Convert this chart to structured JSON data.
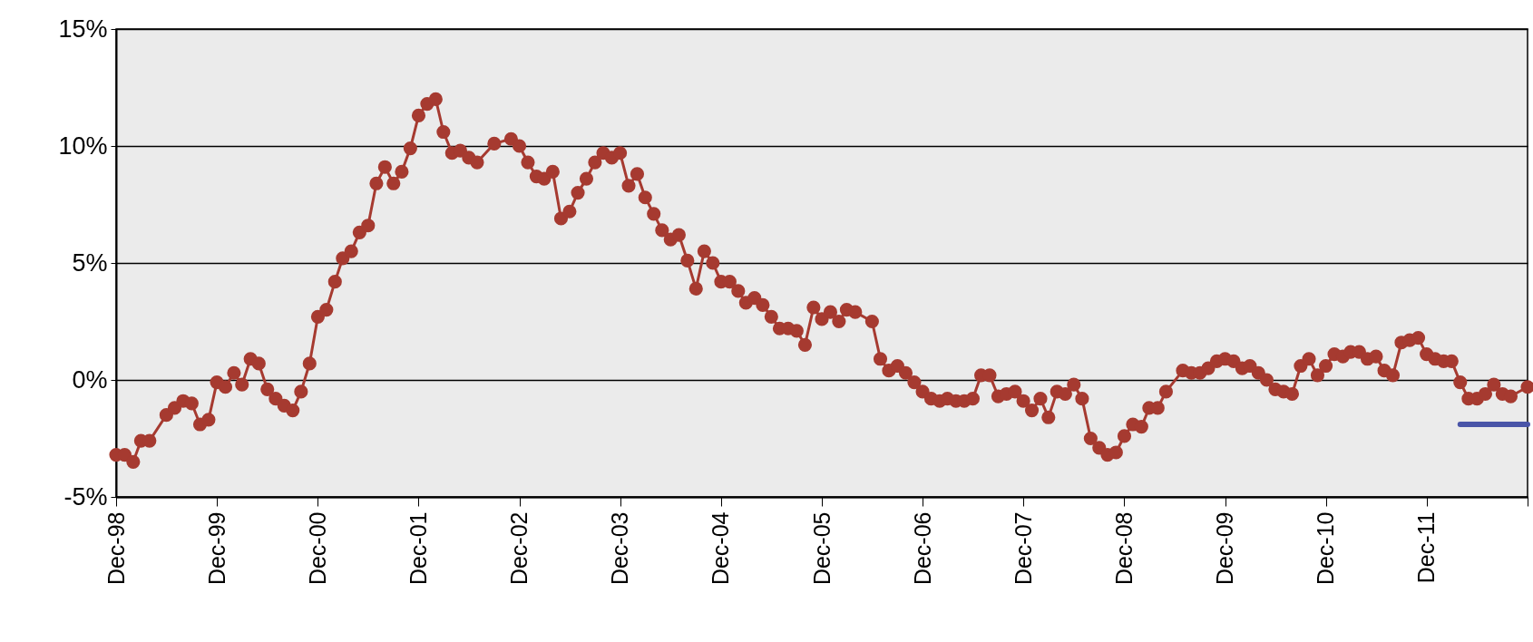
{
  "chart_data": {
    "type": "line",
    "xlim": [
      "1998-12",
      "2012-12"
    ],
    "ylim": [
      -5,
      15
    ],
    "xticks": [
      {
        "value": "1998-12",
        "label": "Dec-98"
      },
      {
        "value": "1999-12",
        "label": "Dec-99"
      },
      {
        "value": "2000-12",
        "label": "Dec-00"
      },
      {
        "value": "2001-12",
        "label": "Dec-01"
      },
      {
        "value": "2002-12",
        "label": "Dec-02"
      },
      {
        "value": "2003-12",
        "label": "Dec-03"
      },
      {
        "value": "2004-12",
        "label": "Dec-04"
      },
      {
        "value": "2005-12",
        "label": "Dec-05"
      },
      {
        "value": "2006-12",
        "label": "Dec-06"
      },
      {
        "value": "2007-12",
        "label": "Dec-07"
      },
      {
        "value": "2008-12",
        "label": "Dec-08"
      },
      {
        "value": "2009-12",
        "label": "Dec-09"
      },
      {
        "value": "2010-12",
        "label": "Dec-10"
      },
      {
        "value": "2011-12",
        "label": "Dec-11"
      },
      {
        "value": "2012-12",
        "label": null
      }
    ],
    "yticks": [
      {
        "value": -5,
        "label": "-5%"
      },
      {
        "value": 0,
        "label": "0%"
      },
      {
        "value": 5,
        "label": "5%"
      },
      {
        "value": 10,
        "label": "10%"
      },
      {
        "value": 15,
        "label": "15%"
      }
    ],
    "grid": "y",
    "marker": "circle",
    "line_style": "solid",
    "series": [
      {
        "color": "#a63a30",
        "x": [
          "1998-12",
          "1999-01",
          "1999-02",
          "1999-03",
          "1999-04",
          "1999-06",
          "1999-07",
          "1999-08",
          "1999-09",
          "1999-10",
          "1999-11",
          "1999-12",
          "2000-01",
          "2000-02",
          "2000-03",
          "2000-04",
          "2000-05",
          "2000-06",
          "2000-07",
          "2000-08",
          "2000-09",
          "2000-10",
          "2000-11",
          "2000-12",
          "2001-01",
          "2001-02",
          "2001-03",
          "2001-04",
          "2001-05",
          "2001-06",
          "2001-07",
          "2001-08",
          "2001-09",
          "2001-10",
          "2001-11",
          "2001-12",
          "2002-01",
          "2002-02",
          "2002-03",
          "2002-04",
          "2002-05",
          "2002-06",
          "2002-07",
          "2002-09",
          "2002-11",
          "2002-12",
          "2003-01",
          "2003-02",
          "2003-03",
          "2003-04",
          "2003-05",
          "2003-06",
          "2003-07",
          "2003-08",
          "2003-09",
          "2003-10",
          "2003-11",
          "2003-12",
          "2004-01",
          "2004-02",
          "2004-03",
          "2004-04",
          "2004-05",
          "2004-06",
          "2004-07",
          "2004-08",
          "2004-09",
          "2004-10",
          "2004-11",
          "2004-12",
          "2005-01",
          "2005-02",
          "2005-03",
          "2005-04",
          "2005-05",
          "2005-06",
          "2005-07",
          "2005-08",
          "2005-09",
          "2005-10",
          "2005-11",
          "2005-12",
          "2006-01",
          "2006-02",
          "2006-03",
          "2006-04",
          "2006-06",
          "2006-07",
          "2006-08",
          "2006-09",
          "2006-10",
          "2006-11",
          "2006-12",
          "2007-01",
          "2007-02",
          "2007-03",
          "2007-04",
          "2007-05",
          "2007-06",
          "2007-07",
          "2007-08",
          "2007-09",
          "2007-10",
          "2007-11",
          "2007-12",
          "2008-01",
          "2008-02",
          "2008-03",
          "2008-04",
          "2008-05",
          "2008-06",
          "2008-07",
          "2008-08",
          "2008-09",
          "2008-10",
          "2008-11",
          "2008-12",
          "2009-01",
          "2009-02",
          "2009-03",
          "2009-04",
          "2009-05",
          "2009-07",
          "2009-08",
          "2009-09",
          "2009-10",
          "2009-11",
          "2009-12",
          "2010-01",
          "2010-02",
          "2010-03",
          "2010-04",
          "2010-05",
          "2010-06",
          "2010-07",
          "2010-08",
          "2010-09",
          "2010-10",
          "2010-11",
          "2010-12",
          "2011-01",
          "2011-02",
          "2011-03",
          "2011-04",
          "2011-05",
          "2011-06",
          "2011-07",
          "2011-08",
          "2011-09",
          "2011-10",
          "2011-11",
          "2011-12",
          "2012-01",
          "2012-02",
          "2012-03",
          "2012-04",
          "2012-05",
          "2012-06",
          "2012-07",
          "2012-08",
          "2012-09",
          "2012-10",
          "2012-12"
        ],
        "values": [
          -3.2,
          -3.2,
          -3.5,
          -2.6,
          -2.6,
          -1.5,
          -1.2,
          -0.9,
          -1.0,
          -1.9,
          -1.7,
          -0.1,
          -0.3,
          0.3,
          -0.2,
          0.9,
          0.7,
          -0.4,
          -0.8,
          -1.1,
          -1.3,
          -0.5,
          0.7,
          2.7,
          3.0,
          4.2,
          5.2,
          5.5,
          6.3,
          6.6,
          8.4,
          9.1,
          8.4,
          8.9,
          9.9,
          11.3,
          11.8,
          12.0,
          10.6,
          9.7,
          9.8,
          9.5,
          9.3,
          10.1,
          10.3,
          10.0,
          9.3,
          8.7,
          8.6,
          8.9,
          6.9,
          7.2,
          8.0,
          8.6,
          9.3,
          9.7,
          9.5,
          9.7,
          8.3,
          8.8,
          7.8,
          7.1,
          6.4,
          6.0,
          6.2,
          5.1,
          3.9,
          5.5,
          5.0,
          4.2,
          4.2,
          3.8,
          3.3,
          3.5,
          3.2,
          2.7,
          2.2,
          2.2,
          2.1,
          1.5,
          3.1,
          2.6,
          2.9,
          2.5,
          3.0,
          2.9,
          2.5,
          0.9,
          0.4,
          0.6,
          0.3,
          -0.1,
          -0.5,
          -0.8,
          -0.9,
          -0.8,
          -0.9,
          -0.9,
          -0.8,
          0.2,
          0.2,
          -0.7,
          -0.6,
          -0.5,
          -0.9,
          -1.3,
          -0.8,
          -1.6,
          -0.5,
          -0.6,
          -0.2,
          -0.8,
          -2.5,
          -2.9,
          -3.2,
          -3.1,
          -2.4,
          -1.9,
          -2.0,
          -1.2,
          -1.2,
          -0.5,
          0.4,
          0.3,
          0.3,
          0.5,
          0.8,
          0.9,
          0.8,
          0.5,
          0.6,
          0.3,
          0.0,
          -0.4,
          -0.5,
          -0.6,
          0.6,
          0.9,
          0.2,
          0.6,
          1.1,
          1.0,
          1.2,
          1.2,
          0.9,
          1.0,
          0.4,
          0.2,
          1.6,
          1.7,
          1.8,
          1.1,
          0.9,
          0.8,
          0.8,
          -0.1,
          -0.8,
          -0.8,
          -0.6,
          -0.2,
          -0.6,
          -0.7,
          -0.3
        ]
      },
      {
        "type": "line",
        "marker": "none",
        "color": "#4a55a8",
        "x": [
          "2012-04",
          "2012-12"
        ],
        "values": [
          -1.9,
          -1.9
        ]
      }
    ]
  }
}
